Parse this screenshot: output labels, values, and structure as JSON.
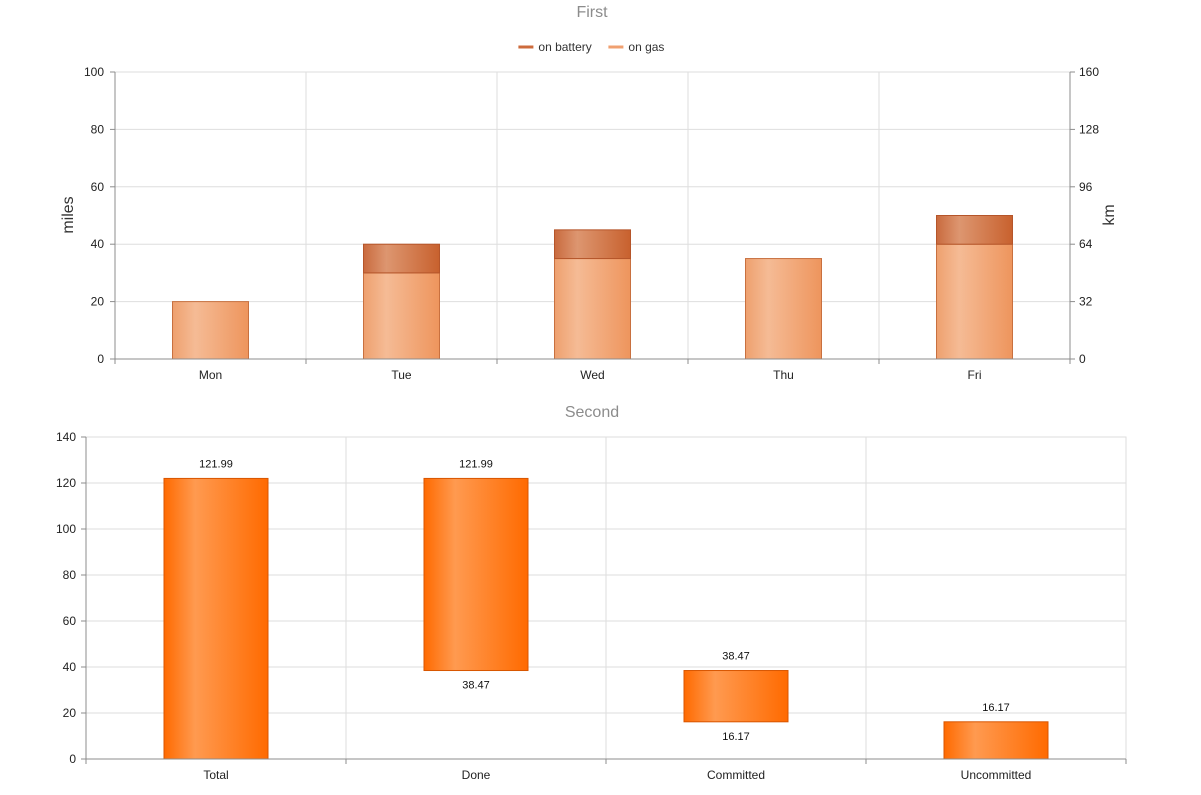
{
  "chart_data": [
    {
      "type": "bar",
      "stacked": true,
      "title": "First",
      "categories": [
        "Mon",
        "Tue",
        "Wed",
        "Thu",
        "Fri"
      ],
      "series": [
        {
          "name": "on gas",
          "values": [
            20,
            30,
            35,
            35,
            40
          ]
        },
        {
          "name": "on battery",
          "values": [
            0,
            10,
            10,
            0,
            10
          ]
        }
      ],
      "legend": {
        "position": "top",
        "order": [
          "on battery",
          "on gas"
        ]
      },
      "ylabel": "miles",
      "ylim": [
        0,
        100
      ],
      "yticks": [
        "0",
        "20",
        "40",
        "60",
        "80",
        "100"
      ],
      "y2label": "km",
      "y2lim": [
        0,
        160
      ],
      "y2ticks": [
        "0",
        "32",
        "64",
        "96",
        "128",
        "160"
      ],
      "grid": true,
      "colors": {
        "on gas": "#f0a070",
        "on battery": "#cd6b3c"
      }
    },
    {
      "type": "bar",
      "floating": true,
      "title": "Second",
      "categories": [
        "Total",
        "Done",
        "Committed",
        "Uncommitted"
      ],
      "ranges": [
        [
          0,
          121.99
        ],
        [
          38.47,
          121.99
        ],
        [
          16.17,
          38.47
        ],
        [
          0,
          16.17
        ]
      ],
      "data_labels": [
        {
          "top": "121.99",
          "bottom": ""
        },
        {
          "top": "121.99",
          "bottom": "38.47"
        },
        {
          "top": "38.47",
          "bottom": "16.17"
        },
        {
          "top": "16.17",
          "bottom": ""
        }
      ],
      "ylim": [
        0,
        140
      ],
      "yticks": [
        "0",
        "20",
        "40",
        "60",
        "80",
        "100",
        "120",
        "140"
      ],
      "grid": true,
      "colors": {
        "bar": "#ff6d00"
      }
    }
  ]
}
